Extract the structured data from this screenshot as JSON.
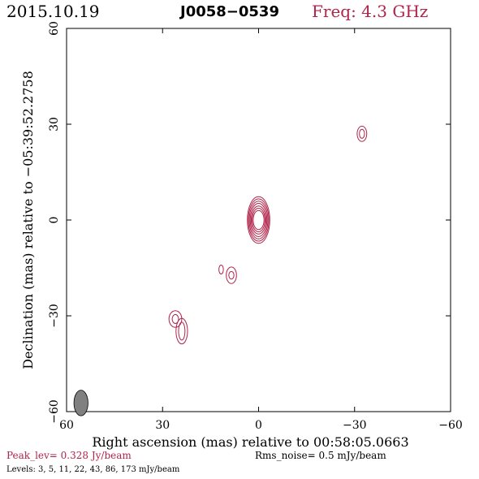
{
  "header": {
    "date": "2015.10.19",
    "source": "J0058−0539",
    "frequency": "Freq: 4.3 GHz"
  },
  "footer": {
    "peak": "Peak_lev=  0.328 Jy/beam",
    "rms": "Rms_noise=  0.5 mJy/beam",
    "levels": "Levels:   3,   5,  11,  22,  43,  86, 173 mJy/beam"
  },
  "colors": {
    "contour": "#b0244a",
    "beam": "#808080",
    "axis": "#000000"
  },
  "chart_data": {
    "type": "contour",
    "xlabel": "Right ascension (mas) relative to 00:58:05.0663",
    "ylabel": "Declination (mas) relative to −05:39:52.2758",
    "xlim": [
      60,
      -60
    ],
    "ylim": [
      -60,
      60
    ],
    "xticks": [
      60,
      30,
      0,
      -30,
      -60
    ],
    "yticks": [
      -60,
      -30,
      0,
      30,
      60
    ],
    "xtick_labels": [
      "60",
      "30",
      "0",
      "−30",
      "−60"
    ],
    "ytick_labels": [
      "−60",
      "−30",
      "0",
      "30",
      "60"
    ],
    "levels_mJy": [
      3,
      5,
      11,
      22,
      43,
      86,
      173
    ],
    "peak_Jy_per_beam": 0.328,
    "rms_mJy_per_beam": 0.5,
    "beam": {
      "x": 55.5,
      "y": -57.3,
      "major_mas": 4.0,
      "minor_mas": 2.2
    },
    "components": [
      {
        "name": "core",
        "x": 0,
        "y": 0,
        "contours": [
          [
            1.7,
            3.0
          ],
          [
            2.0,
            3.7
          ],
          [
            2.3,
            4.4
          ],
          [
            2.6,
            5.2
          ],
          [
            2.9,
            5.9
          ],
          [
            3.2,
            6.6
          ],
          [
            3.5,
            7.3
          ]
        ]
      },
      {
        "name": "jet-a",
        "x": -32.3,
        "y": 27.0,
        "contours": [
          [
            0.8,
            1.4
          ],
          [
            1.5,
            2.4
          ]
        ]
      },
      {
        "name": "jet-b",
        "x": 8.5,
        "y": -17.3,
        "contours": [
          [
            0.8,
            1.2
          ],
          [
            1.6,
            2.6
          ]
        ]
      },
      {
        "name": "jet-c",
        "x": 11.7,
        "y": -15.5,
        "contours": [
          [
            0.7,
            1.4
          ]
        ]
      },
      {
        "name": "cj-1",
        "x": 26.0,
        "y": -31.0,
        "contours": [
          [
            1.0,
            1.4
          ],
          [
            2.0,
            2.6
          ]
        ]
      },
      {
        "name": "cj-2",
        "x": 24.0,
        "y": -34.8,
        "contours": [
          [
            1.0,
            2.8
          ],
          [
            1.8,
            4.0
          ]
        ]
      }
    ]
  }
}
